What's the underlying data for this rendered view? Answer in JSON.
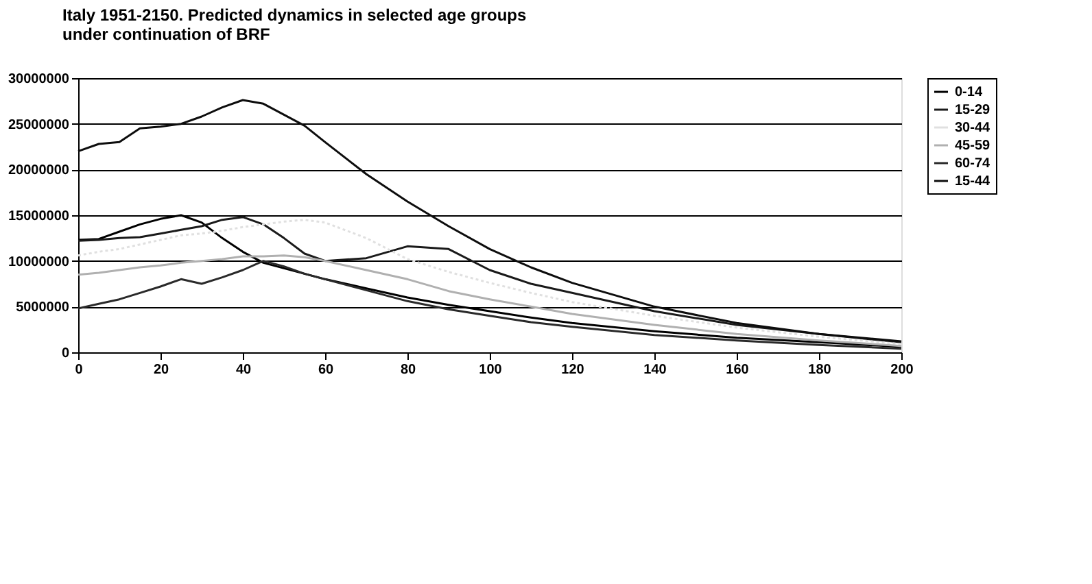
{
  "chart_data": {
    "type": "line",
    "title": "Italy 1951-2150. Predicted dynamics in selected age groups\nunder continuation of BRF",
    "x": [
      0,
      5,
      10,
      15,
      20,
      25,
      30,
      35,
      40,
      45,
      50,
      55,
      60,
      70,
      80,
      90,
      100,
      110,
      120,
      140,
      160,
      180,
      200
    ],
    "series": [
      {
        "name": "0-14",
        "color": "#000000",
        "line_style": "solid",
        "values": [
          12300000,
          12400000,
          13200000,
          14000000,
          14600000,
          15000000,
          14200000,
          12500000,
          11000000,
          9800000,
          9200000,
          8600000,
          8000000,
          7000000,
          6000000,
          5200000,
          4500000,
          3800000,
          3200000,
          2300000,
          1600000,
          1100000,
          600000
        ]
      },
      {
        "name": "15-29",
        "color": "#1a1a1a",
        "line_style": "solid",
        "values": [
          12200000,
          12300000,
          12500000,
          12600000,
          13000000,
          13400000,
          13800000,
          14500000,
          14800000,
          14000000,
          12500000,
          10800000,
          10000000,
          10300000,
          11600000,
          11300000,
          9000000,
          7500000,
          6500000,
          4500000,
          3000000,
          2000000,
          1100000
        ]
      },
      {
        "name": "30-44",
        "color": "#e0e0e0",
        "line_style": "dotted",
        "values": [
          10600000,
          11000000,
          11300000,
          11800000,
          12300000,
          12800000,
          13000000,
          13300000,
          13700000,
          14000000,
          14300000,
          14500000,
          14200000,
          12500000,
          10200000,
          8800000,
          7600000,
          6500000,
          5500000,
          4000000,
          2700000,
          1700000,
          900000
        ]
      },
      {
        "name": "45-59",
        "color": "#b0b0b0",
        "line_style": "solid",
        "values": [
          8500000,
          8700000,
          9000000,
          9300000,
          9500000,
          9800000,
          10000000,
          10200000,
          10500000,
          10500000,
          10600000,
          10400000,
          10000000,
          9000000,
          8000000,
          6700000,
          5800000,
          5000000,
          4200000,
          3000000,
          2000000,
          1300000,
          700000
        ]
      },
      {
        "name": "60-74",
        "color": "#2a2a2a",
        "line_style": "solid",
        "values": [
          4800000,
          5300000,
          5800000,
          6500000,
          7200000,
          8000000,
          7500000,
          8200000,
          9000000,
          10000000,
          9400000,
          8600000,
          8000000,
          6800000,
          5600000,
          4700000,
          4000000,
          3300000,
          2800000,
          1900000,
          1300000,
          800000,
          400000
        ]
      },
      {
        "name": "15-44",
        "color": "#0d0d0d",
        "line_style": "solid",
        "values": [
          22000000,
          22800000,
          23000000,
          24500000,
          24700000,
          25000000,
          25800000,
          26800000,
          27600000,
          27200000,
          26000000,
          24800000,
          23000000,
          19500000,
          16500000,
          13800000,
          11300000,
          9300000,
          7600000,
          5000000,
          3200000,
          2000000,
          1200000
        ]
      }
    ],
    "xlim": [
      0,
      200
    ],
    "xticks": [
      0,
      20,
      40,
      60,
      80,
      100,
      120,
      140,
      160,
      180,
      200
    ],
    "ylim": [
      0,
      30000000
    ],
    "yticks": [
      0,
      5000000,
      10000000,
      15000000,
      20000000,
      25000000,
      30000000
    ],
    "grid": "y",
    "legend": "right",
    "marker": "none"
  }
}
